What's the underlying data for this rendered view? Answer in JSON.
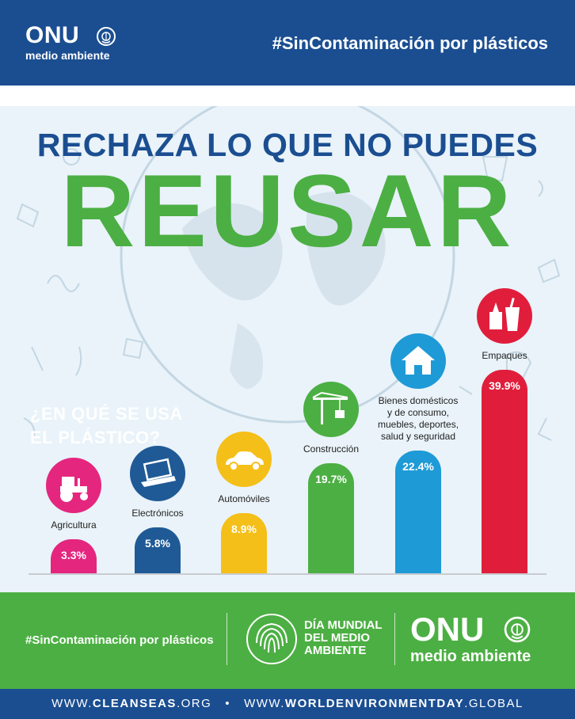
{
  "header": {
    "logo_onu": "ONU",
    "logo_sub": "medio ambiente",
    "hashtag": "#SinContaminación por plásticos"
  },
  "headline": {
    "line1": "RECHAZA LO QUE NO PUEDES",
    "line2": "REUSAR"
  },
  "question": {
    "line1": "¿EN QUÉ SE USA",
    "line2": "EL PLÁSTICO?"
  },
  "chart_data": {
    "type": "bar",
    "title": "¿EN QUÉ SE USA EL PLÁSTICO?",
    "categories": [
      "Agricultura",
      "Electrónicos",
      "Automóviles",
      "Construcción",
      "Bienes domésticos y de consumo, muebles, deportes, salud y seguridad",
      "Empaques"
    ],
    "values": [
      3.3,
      5.8,
      8.9,
      19.7,
      22.4,
      39.9
    ],
    "value_labels": [
      "3.3%",
      "5.8%",
      "8.9%",
      "19.7%",
      "22.4%",
      "39.9%"
    ],
    "label_lines": [
      [
        "Agricultura"
      ],
      [
        "Electrónicos"
      ],
      [
        "Automóviles"
      ],
      [
        "Construcción"
      ],
      [
        "Bienes domésticos",
        "y de consumo,",
        "muebles, deportes,",
        "salud y seguridad"
      ],
      [
        "Empaques"
      ]
    ],
    "colors": [
      "#e4267f",
      "#1f5a96",
      "#f5bf19",
      "#4caf43",
      "#1e9ad6",
      "#e01e3c"
    ],
    "icons": [
      "tractor-icon",
      "laptop-icon",
      "car-icon",
      "crane-icon",
      "house-icon",
      "cup-icon"
    ],
    "ylim": [
      0,
      40
    ],
    "grid": false,
    "legend": "none"
  },
  "footer": {
    "hashtag": "#SinContaminación por plásticos",
    "dia_line1": "DÍA MUNDIAL",
    "dia_line2": "DEL MEDIO",
    "dia_line3": "AMBIENTE",
    "logo_onu": "ONU",
    "logo_sub": "medio ambiente"
  },
  "bottom": {
    "url1_prefix": "WWW.",
    "url1_bold": "CLEANSEAS",
    "url1_suffix": ".ORG",
    "separator": "•",
    "url2_prefix": "WWW.",
    "url2_bold": "WORLDENVIRONMENTDAY",
    "url2_suffix": ".GLOBAL"
  }
}
